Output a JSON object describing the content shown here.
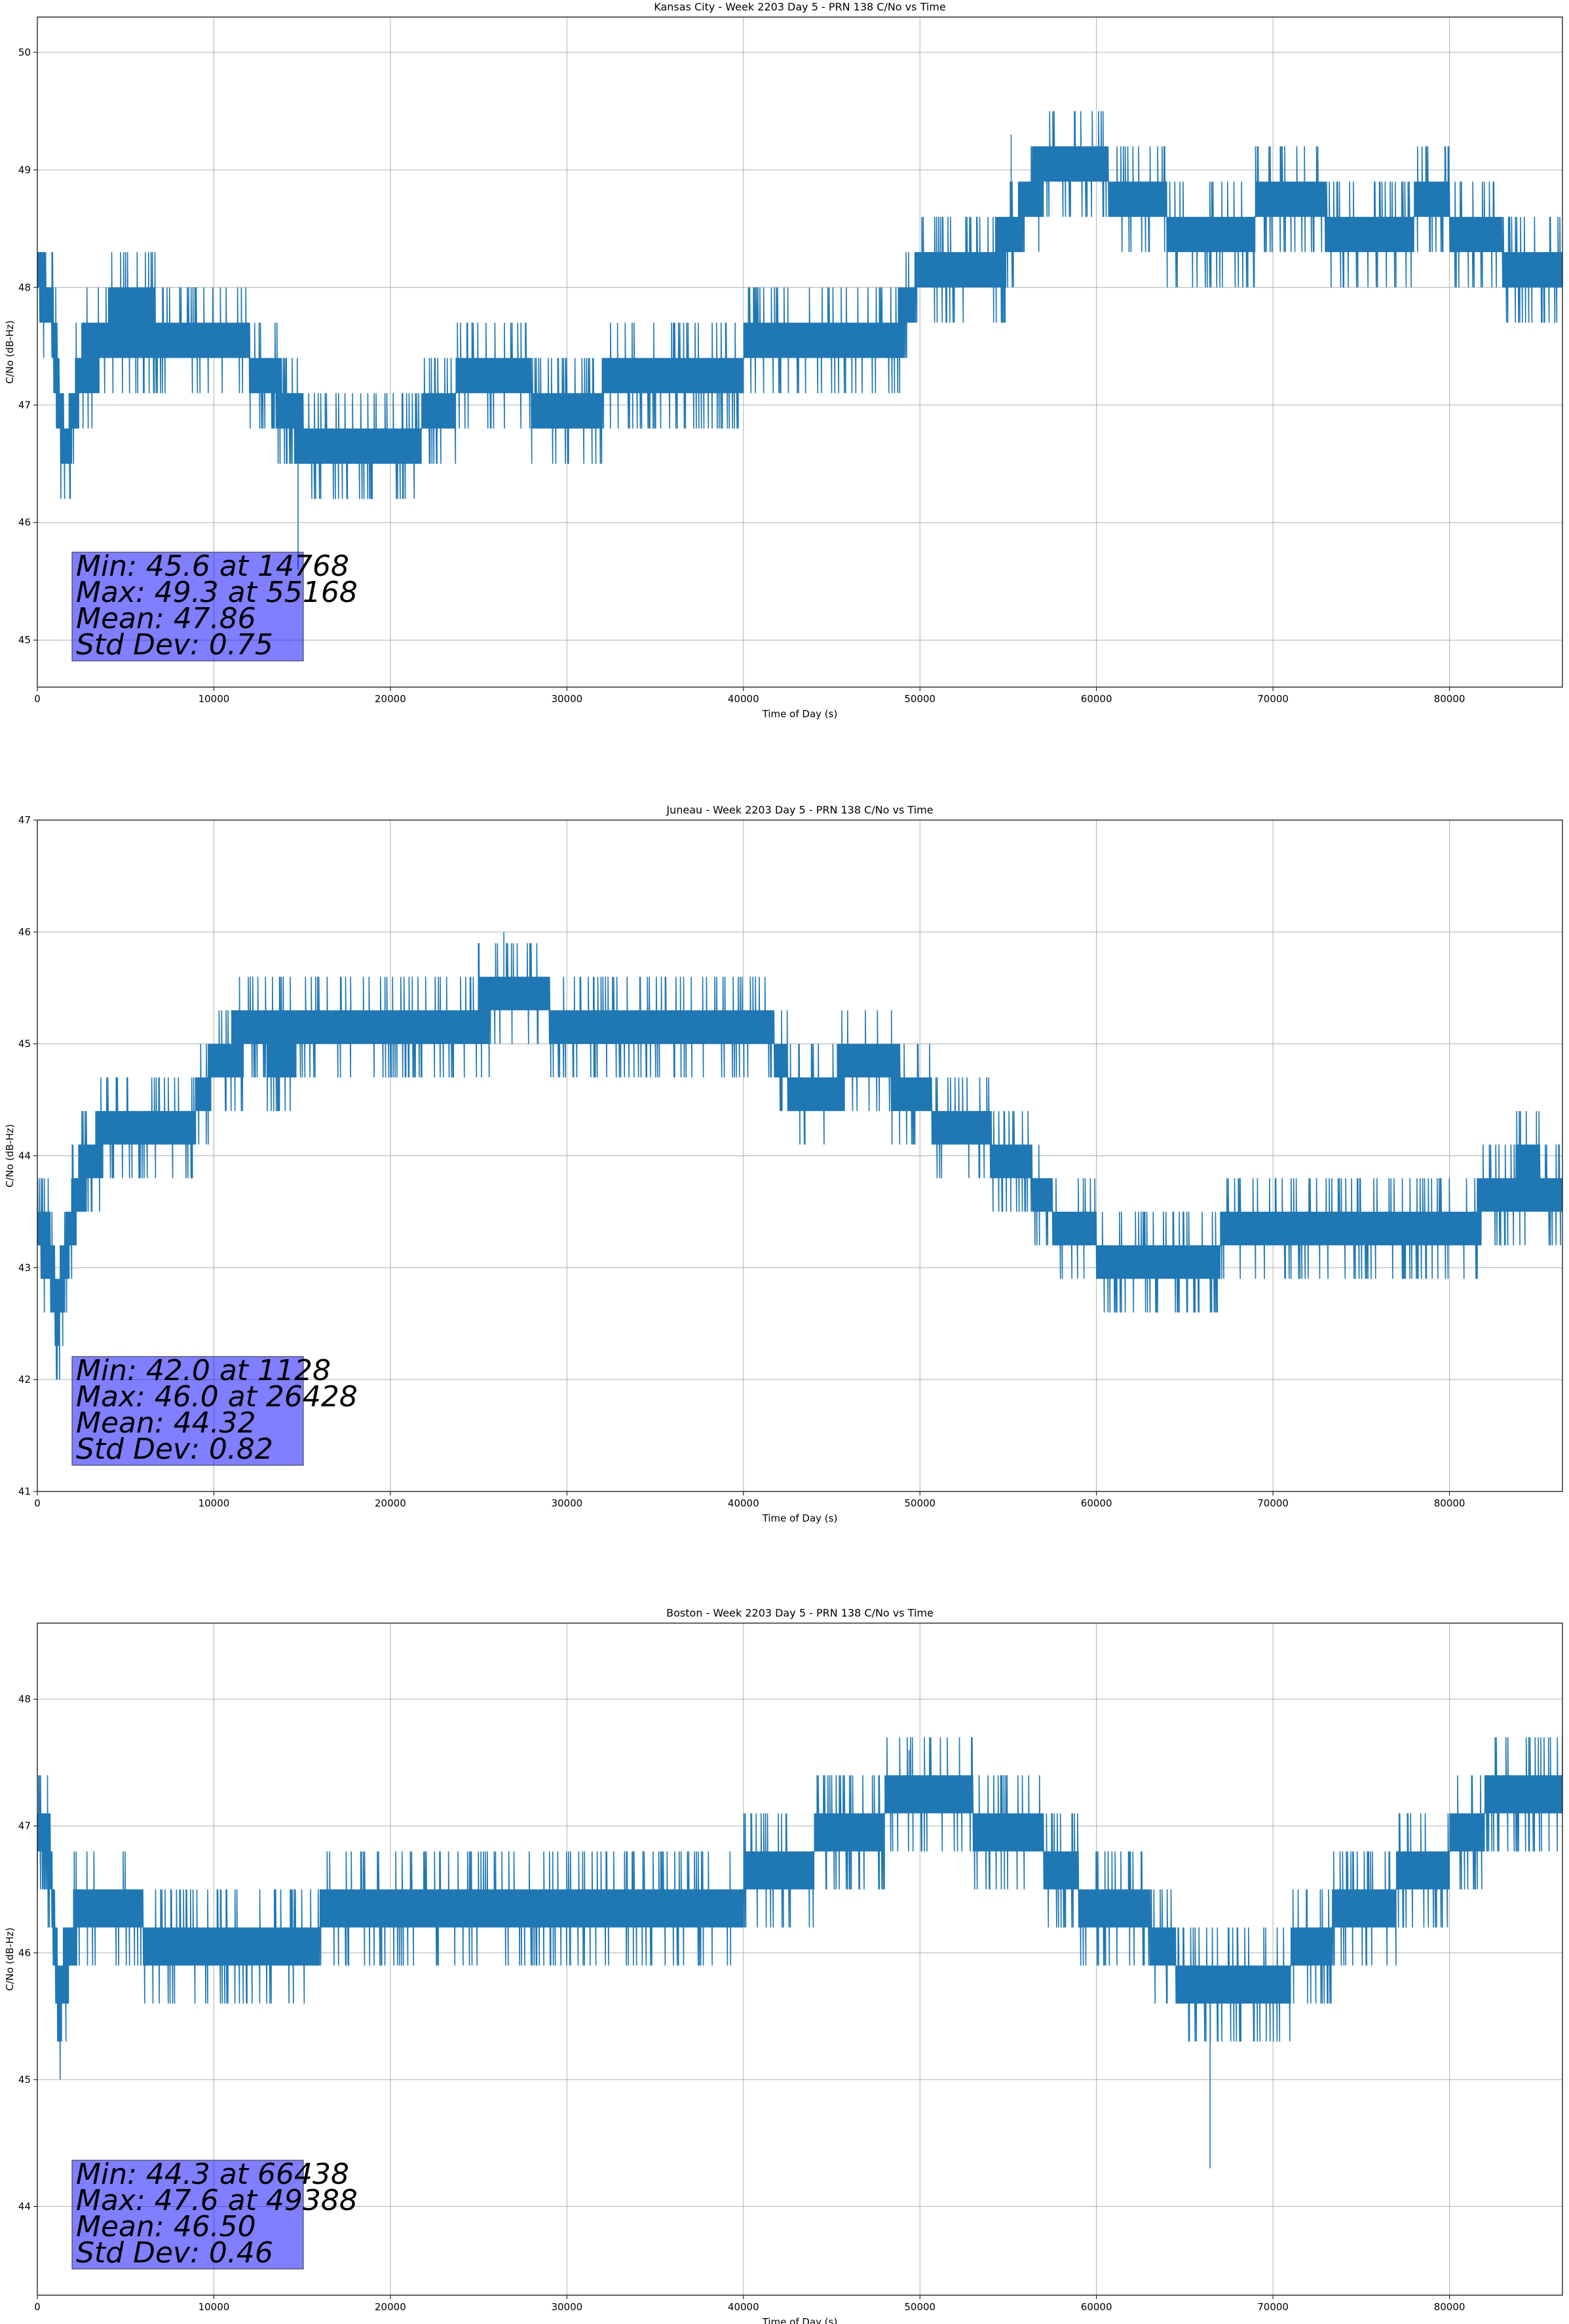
{
  "chart_data": [
    {
      "type": "line",
      "title": "Kansas City - Week 2203 Day 5 - PRN 138 C/No vs Time",
      "xlabel": "Time of Day (s)",
      "ylabel": "C/No (dB-Hz)",
      "xlim": [
        0,
        86400
      ],
      "ylim": [
        44.6,
        50.3
      ],
      "xticks": [
        0,
        10000,
        20000,
        30000,
        40000,
        50000,
        60000,
        70000,
        80000
      ],
      "xtick_labels": [
        "0",
        "10000",
        "20000",
        "30000",
        "40000",
        "50000",
        "60000",
        "70000",
        "80000"
      ],
      "yticks": [
        45,
        46,
        47,
        48,
        49,
        50
      ],
      "ytick_labels": [
        "45",
        "46",
        "47",
        "48",
        "49",
        "50"
      ],
      "grid": true,
      "series_color": "#1f77b4",
      "series": [
        {
          "name": "C/No",
          "x": [
            0,
            800,
            1128,
            1600,
            2500,
            4000,
            6000,
            8000,
            10000,
            12000,
            13000,
            14000,
            14768,
            15500,
            17000,
            19000,
            21000,
            22500,
            24000,
            26000,
            28000,
            30000,
            32000,
            34000,
            36000,
            38000,
            40000,
            42000,
            44000,
            46000,
            48000,
            49000,
            50000,
            52000,
            54000,
            55168,
            56500,
            58000,
            60000,
            62000,
            64000,
            66000,
            68000,
            70000,
            72000,
            74000,
            76000,
            78000,
            80000,
            82000,
            84000,
            86400
          ],
          "mid": [
            48.1,
            47.8,
            47.1,
            46.6,
            47.3,
            47.6,
            47.7,
            47.6,
            47.5,
            47.4,
            47.3,
            47.0,
            46.8,
            46.7,
            46.7,
            46.7,
            46.7,
            46.9,
            47.1,
            47.1,
            47.1,
            47.0,
            47.1,
            47.1,
            47.2,
            47.3,
            47.4,
            47.4,
            47.4,
            47.4,
            47.5,
            47.7,
            48.1,
            48.1,
            48.2,
            48.4,
            48.9,
            49.0,
            49.0,
            48.7,
            48.6,
            48.5,
            48.5,
            48.7,
            48.7,
            48.5,
            48.5,
            48.6,
            48.6,
            48.4,
            48.2,
            48.1
          ],
          "spread": [
            0.4,
            0.5,
            0.6,
            0.4,
            0.5,
            0.5,
            0.4,
            0.3,
            0.3,
            0.3,
            0.4,
            0.4,
            0.4,
            0.3,
            0.3,
            0.3,
            0.3,
            0.3,
            0.2,
            0.2,
            0.3,
            0.3,
            0.3,
            0.3,
            0.3,
            0.3,
            0.3,
            0.3,
            0.3,
            0.3,
            0.4,
            0.4,
            0.3,
            0.3,
            0.4,
            0.4,
            0.4,
            0.3,
            0.3,
            0.3,
            0.3,
            0.3,
            0.3,
            0.3,
            0.3,
            0.3,
            0.3,
            0.3,
            0.3,
            0.3,
            0.3,
            0.3
          ]
        }
      ],
      "stats": [
        "Min: 45.6 at 14768",
        "Max: 49.3 at 55168",
        "Mean: 47.86",
        "Std Dev: 0.75"
      ],
      "min": {
        "x": 14768,
        "y": 45.6
      },
      "max": {
        "x": 55168,
        "y": 49.3
      }
    },
    {
      "type": "line",
      "title": "Juneau - Week 2203 Day 5 - PRN 138 C/No vs Time",
      "xlabel": "Time of Day (s)",
      "ylabel": "C/No (dB-Hz)",
      "xlim": [
        0,
        86400
      ],
      "ylim": [
        41,
        47
      ],
      "xticks": [
        0,
        10000,
        20000,
        30000,
        40000,
        50000,
        60000,
        70000,
        80000
      ],
      "xtick_labels": [
        "0",
        "10000",
        "20000",
        "30000",
        "40000",
        "50000",
        "60000",
        "70000",
        "80000"
      ],
      "yticks": [
        41,
        42,
        43,
        44,
        45,
        46,
        47
      ],
      "ytick_labels": [
        "41",
        "42",
        "43",
        "44",
        "45",
        "46",
        "47"
      ],
      "grid": true,
      "series_color": "#1f77b4",
      "series": [
        {
          "name": "C/No",
          "x": [
            0,
            700,
            1128,
            1800,
            2500,
            3500,
            5000,
            7000,
            9000,
            10000,
            12000,
            14000,
            16000,
            18000,
            20000,
            22000,
            24000,
            26428,
            28000,
            30000,
            32000,
            34000,
            36000,
            38000,
            40000,
            41500,
            42500,
            44000,
            46000,
            48000,
            50000,
            52000,
            54000,
            56000,
            57500,
            59000,
            61000,
            63000,
            65000,
            67000,
            69000,
            71000,
            73000,
            75000,
            77000,
            79000,
            81000,
            83000,
            84500,
            86400
          ],
          "mid": [
            43.4,
            43.1,
            42.6,
            43.3,
            43.8,
            44.1,
            44.4,
            44.3,
            44.4,
            44.8,
            45.1,
            45.0,
            45.1,
            45.0,
            45.1,
            45.1,
            45.2,
            45.4,
            45.4,
            45.2,
            45.2,
            45.1,
            45.1,
            45.2,
            45.2,
            45.1,
            44.7,
            44.4,
            44.8,
            44.8,
            44.5,
            44.2,
            44.1,
            43.9,
            43.5,
            43.3,
            43.1,
            43.1,
            43.0,
            43.2,
            43.2,
            43.3,
            43.4,
            43.2,
            43.2,
            43.2,
            43.4,
            43.7,
            43.8,
            43.7
          ],
          "spread": [
            0.5,
            0.6,
            0.6,
            0.5,
            0.5,
            0.4,
            0.3,
            0.3,
            0.3,
            0.4,
            0.4,
            0.4,
            0.3,
            0.3,
            0.3,
            0.3,
            0.3,
            0.4,
            0.3,
            0.3,
            0.3,
            0.3,
            0.3,
            0.3,
            0.3,
            0.3,
            0.3,
            0.3,
            0.4,
            0.4,
            0.3,
            0.3,
            0.3,
            0.3,
            0.3,
            0.3,
            0.3,
            0.3,
            0.3,
            0.3,
            0.3,
            0.3,
            0.3,
            0.3,
            0.3,
            0.3,
            0.3,
            0.4,
            0.4,
            0.3
          ]
        }
      ],
      "stats": [
        "Min: 42.0 at 1128",
        "Max: 46.0 at 26428",
        "Mean: 44.32",
        "Std Dev: 0.82"
      ],
      "min": {
        "x": 1128,
        "y": 42.0
      },
      "max": {
        "x": 26428,
        "y": 46.0
      }
    },
    {
      "type": "line",
      "title": "Boston - Week 2203 Day 5 - PRN 138 C/No vs Time",
      "xlabel": "Time of Day (s)",
      "ylabel": "C/No (dB-Hz)",
      "xlim": [
        0,
        86400
      ],
      "ylim": [
        43.3,
        48.6
      ],
      "xticks": [
        0,
        10000,
        20000,
        30000,
        40000,
        50000,
        60000,
        70000,
        80000
      ],
      "xtick_labels": [
        "0",
        "10000",
        "20000",
        "30000",
        "40000",
        "50000",
        "60000",
        "70000",
        "80000"
      ],
      "yticks": [
        44,
        45,
        46,
        47,
        48
      ],
      "ytick_labels": [
        "44",
        "45",
        "46",
        "47",
        "48"
      ],
      "grid": true,
      "series_color": "#1f77b4",
      "series": [
        {
          "name": "C/No",
          "x": [
            0,
            700,
            1200,
            1800,
            2500,
            4000,
            6000,
            8000,
            10000,
            12000,
            14000,
            16000,
            18000,
            20000,
            22000,
            24000,
            26000,
            28000,
            30000,
            32000,
            34000,
            36000,
            38000,
            40000,
            42000,
            44000,
            46000,
            48000,
            49388,
            51000,
            53000,
            55000,
            57000,
            59000,
            61000,
            63000,
            64500,
            66438,
            68000,
            70000,
            72000,
            74000,
            76000,
            78000,
            80000,
            82000,
            84000,
            86400
          ],
          "mid": [
            47.0,
            46.8,
            45.6,
            46.0,
            46.4,
            46.3,
            46.2,
            46.1,
            46.1,
            46.1,
            46.1,
            46.2,
            46.2,
            46.3,
            46.4,
            46.4,
            46.4,
            46.4,
            46.4,
            46.3,
            46.3,
            46.3,
            46.3,
            46.5,
            46.7,
            46.8,
            46.9,
            47.1,
            47.3,
            47.1,
            47.1,
            46.9,
            46.8,
            46.5,
            46.4,
            46.2,
            45.9,
            45.8,
            45.8,
            45.8,
            46.0,
            46.3,
            46.4,
            46.6,
            46.8,
            47.1,
            47.3,
            47.4
          ],
          "spread": [
            0.3,
            0.4,
            0.6,
            0.5,
            0.3,
            0.3,
            0.3,
            0.3,
            0.3,
            0.3,
            0.3,
            0.3,
            0.3,
            0.3,
            0.2,
            0.2,
            0.2,
            0.2,
            0.2,
            0.3,
            0.3,
            0.3,
            0.3,
            0.3,
            0.3,
            0.3,
            0.3,
            0.3,
            0.3,
            0.3,
            0.3,
            0.3,
            0.3,
            0.3,
            0.3,
            0.3,
            0.3,
            0.3,
            0.3,
            0.3,
            0.3,
            0.3,
            0.3,
            0.3,
            0.3,
            0.3,
            0.3,
            0.3
          ]
        }
      ],
      "stats": [
        "Min: 44.3 at 66438",
        "Max: 47.6 at 49388",
        "Mean: 46.50",
        "Std Dev: 0.46"
      ],
      "min": {
        "x": 66438,
        "y": 44.3
      },
      "max": {
        "x": 49388,
        "y": 47.6
      }
    }
  ]
}
